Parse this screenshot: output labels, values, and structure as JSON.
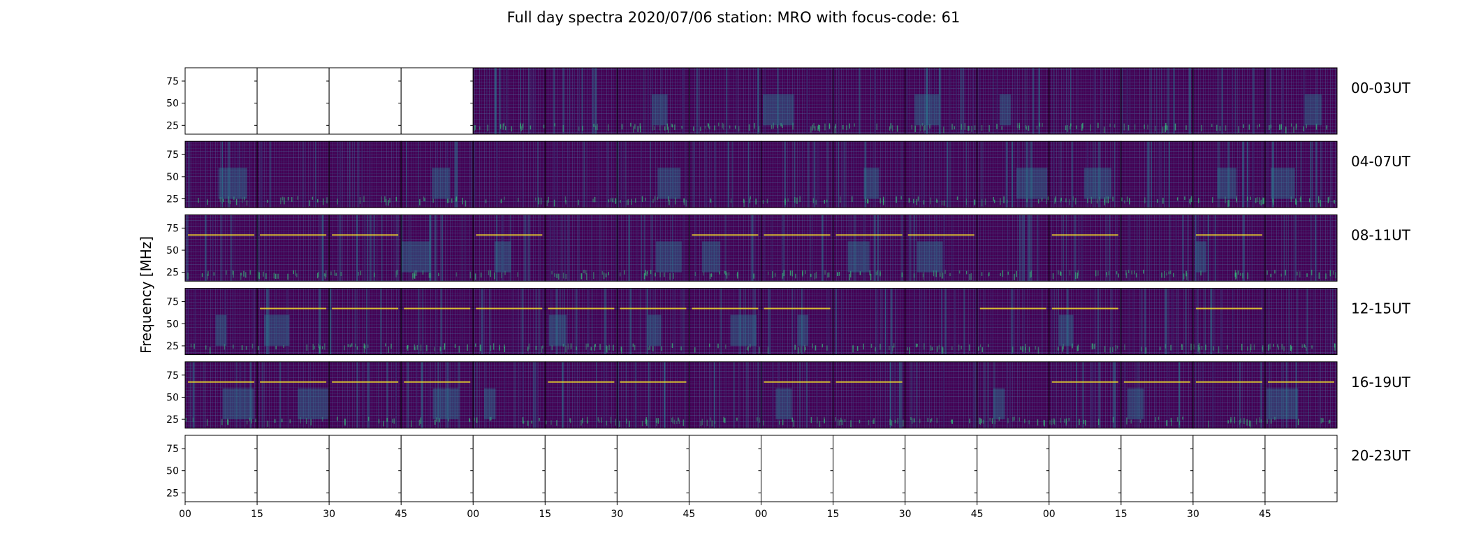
{
  "chart_data": {
    "type": "heatmap",
    "title": "Full day spectra 2020/07/06 station: MRO with focus-code: 61",
    "ylabel": "Frequency [MHz]",
    "xlabel": "",
    "ylim": [
      15,
      90
    ],
    "yticks": [
      25,
      50,
      75
    ],
    "xticks": [
      "00",
      "15",
      "30",
      "45",
      "00",
      "15",
      "30",
      "45",
      "00",
      "15",
      "30",
      "45",
      "00",
      "15",
      "30",
      "45"
    ],
    "colormap": "viridis",
    "panels_per_row": 16,
    "panel_minutes": 15,
    "rows": [
      {
        "label": "00-03UT",
        "has_data": [
          false,
          false,
          false,
          false,
          true,
          true,
          true,
          true,
          true,
          true,
          true,
          true,
          true,
          true,
          true,
          true
        ]
      },
      {
        "label": "04-07UT",
        "has_data": [
          true,
          true,
          true,
          true,
          true,
          true,
          true,
          true,
          true,
          true,
          true,
          true,
          true,
          true,
          true,
          true
        ]
      },
      {
        "label": "08-11UT",
        "has_data": [
          true,
          true,
          true,
          true,
          true,
          true,
          true,
          true,
          true,
          true,
          true,
          true,
          true,
          true,
          true,
          true
        ]
      },
      {
        "label": "12-15UT",
        "has_data": [
          true,
          true,
          true,
          true,
          true,
          true,
          true,
          true,
          true,
          true,
          true,
          true,
          true,
          true,
          true,
          true
        ]
      },
      {
        "label": "16-19UT",
        "has_data": [
          true,
          true,
          true,
          true,
          true,
          true,
          true,
          true,
          true,
          true,
          true,
          true,
          true,
          true,
          true,
          true
        ]
      },
      {
        "label": "20-23UT",
        "has_data": [
          false,
          false,
          false,
          false,
          false,
          false,
          false,
          false,
          false,
          false,
          false,
          false,
          false,
          false,
          false,
          false
        ]
      }
    ],
    "colors": {
      "background": "#440154",
      "low": "#3b2a6e",
      "mid": "#2a788e",
      "high": "#35b779",
      "line": "#fde725"
    }
  }
}
